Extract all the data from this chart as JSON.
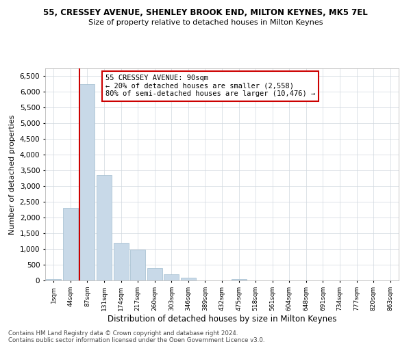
{
  "title": "55, CRESSEY AVENUE, SHENLEY BROOK END, MILTON KEYNES, MK5 7EL",
  "subtitle": "Size of property relative to detached houses in Milton Keynes",
  "xlabel": "Distribution of detached houses by size in Milton Keynes",
  "ylabel": "Number of detached properties",
  "footer1": "Contains HM Land Registry data © Crown copyright and database right 2024.",
  "footer2": "Contains public sector information licensed under the Open Government Licence v3.0.",
  "property_size_idx": 2,
  "annotation_title": "55 CRESSEY AVENUE: 90sqm",
  "annotation_line2": "← 20% of detached houses are smaller (2,558)",
  "annotation_line3": "80% of semi-detached houses are larger (10,476) →",
  "bar_color": "#c8d9e8",
  "bar_edgecolor": "#a0bcce",
  "vline_color": "#cc0000",
  "annotation_box_color": "#cc0000",
  "bin_labels": [
    "1sqm",
    "44sqm",
    "87sqm",
    "131sqm",
    "174sqm",
    "217sqm",
    "260sqm",
    "303sqm",
    "346sqm",
    "389sqm",
    "432sqm",
    "475sqm",
    "518sqm",
    "561sqm",
    "604sqm",
    "648sqm",
    "691sqm",
    "734sqm",
    "777sqm",
    "820sqm",
    "863sqm"
  ],
  "counts": [
    50,
    2300,
    6250,
    3350,
    1200,
    970,
    400,
    200,
    90,
    0,
    0,
    50,
    0,
    0,
    0,
    0,
    0,
    0,
    0,
    0,
    0
  ],
  "ylim": [
    0,
    6750
  ],
  "yticks": [
    0,
    500,
    1000,
    1500,
    2000,
    2500,
    3000,
    3500,
    4000,
    4500,
    5000,
    5500,
    6000,
    6500
  ],
  "bg_color": "#ffffff",
  "grid_color": "#d0d8df"
}
